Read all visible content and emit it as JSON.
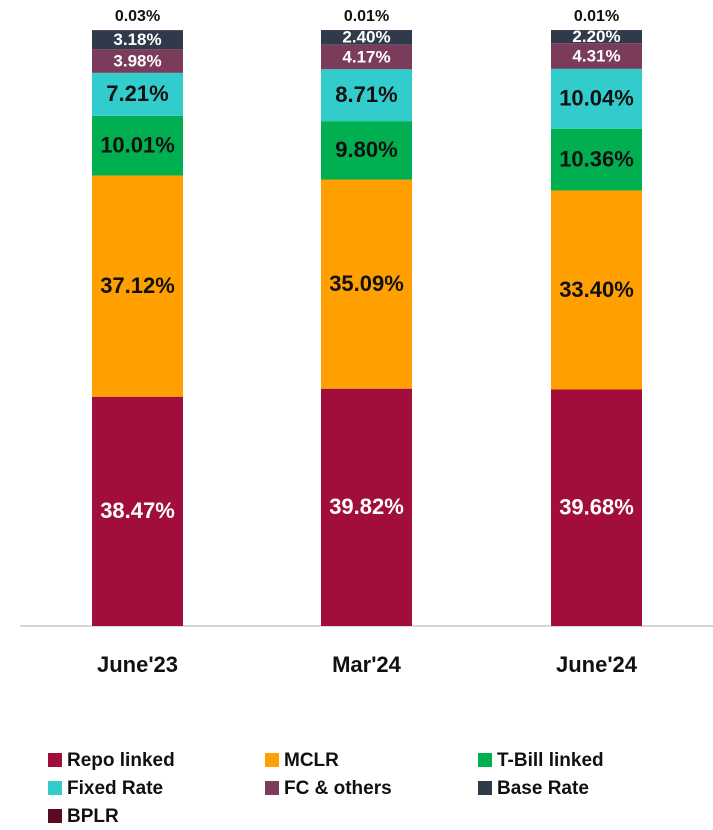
{
  "chart_data": {
    "type": "bar",
    "stacked": true,
    "categories": [
      "June'23",
      "Mar'24",
      "June'24"
    ],
    "ylim": [
      0,
      100
    ],
    "legend": "bottom",
    "series": [
      {
        "name": "Repo linked",
        "color": "#a20e3b",
        "values": [
          38.47,
          39.82,
          39.68
        ],
        "value_labels": [
          "38.47%",
          "39.82%",
          "39.68%"
        ]
      },
      {
        "name": "MCLR",
        "color": "#ff9f00",
        "values": [
          37.12,
          35.09,
          33.4
        ],
        "value_labels": [
          "37.12%",
          "35.09%",
          "33.40%"
        ]
      },
      {
        "name": "T-Bill linked",
        "color": "#00b050",
        "values": [
          10.01,
          9.8,
          10.36
        ],
        "value_labels": [
          "10.01%",
          "9.80%",
          "10.36%"
        ]
      },
      {
        "name": "Fixed Rate",
        "color": "#33cccc",
        "values": [
          7.21,
          8.71,
          10.04
        ],
        "value_labels": [
          "7.21%",
          "8.71%",
          "10.04%"
        ]
      },
      {
        "name": "FC & others",
        "color": "#7b3b5a",
        "values": [
          3.98,
          4.17,
          4.31
        ],
        "value_labels": [
          "3.98%",
          "4.17%",
          "4.31%"
        ]
      },
      {
        "name": "Base Rate",
        "color": "#2f3a4b",
        "values": [
          3.18,
          2.4,
          2.2
        ],
        "value_labels": [
          "3.18%",
          "2.40%",
          "2.20%"
        ]
      },
      {
        "name": "BPLR",
        "color": "#5a0a20",
        "values": [
          0.03,
          0.01,
          0.01
        ],
        "value_labels": [
          "0.03%",
          "0.01%",
          "0.01%"
        ]
      }
    ]
  }
}
